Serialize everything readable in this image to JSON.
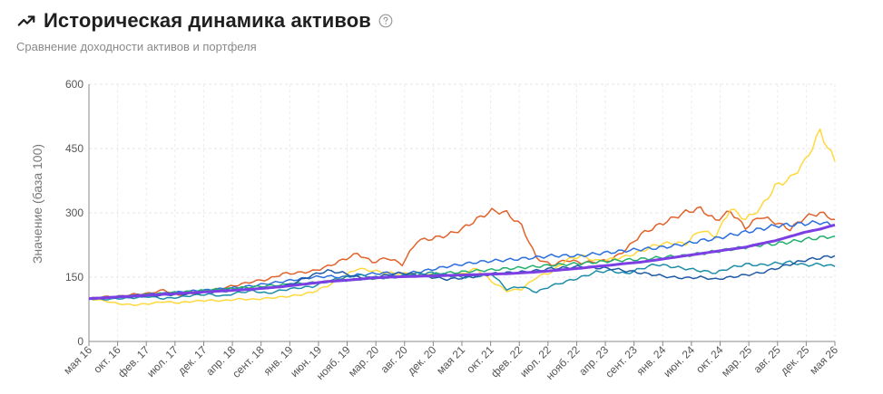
{
  "header": {
    "title": "Историческая динамика активов",
    "subtitle": "Сравнение доходности активов и портфеля"
  },
  "icons": {
    "trend": "trend-up-icon",
    "help": "help-circle-icon"
  },
  "chart_data": {
    "type": "line",
    "ylabel": "Значение (база 100)",
    "xlabel": "",
    "ylim": [
      0,
      600
    ],
    "yticks": [
      0,
      150,
      300,
      450,
      600
    ],
    "x_tick_labels": [
      "мая 16",
      "окт. 16",
      "фев. 17",
      "июл. 17",
      "дек. 17",
      "апр. 18",
      "сент. 18",
      "янв. 19",
      "июн. 19",
      "нояб. 19",
      "мар. 20",
      "авг. 20",
      "дек. 20",
      "мая 21",
      "окт. 21",
      "фев. 22",
      "июл. 22",
      "нояб. 22",
      "апр. 23",
      "сент. 23",
      "янв. 24",
      "июн. 24",
      "окт. 24",
      "мар. 25",
      "авг. 25",
      "дек. 25",
      "мая 26"
    ],
    "grid": true,
    "legend": "none",
    "series": [
      {
        "color": "#e0632c",
        "values": [
          100,
          104,
          105,
          110,
          112,
          120,
          108,
          112,
          118,
          125,
          132,
          140,
          145,
          158,
          160,
          164,
          175,
          190,
          205,
          185,
          195,
          180,
          235,
          240,
          248,
          262,
          285,
          305,
          300,
          270,
          195,
          178,
          190,
          184,
          186,
          190,
          215,
          250,
          268,
          285,
          302,
          310,
          282,
          304,
          265,
          292,
          278,
          262,
          290,
          300,
          285
        ]
      },
      {
        "color": "#ffd93d",
        "values": [
          100,
          95,
          88,
          85,
          88,
          93,
          90,
          94,
          96,
          95,
          99,
          98,
          101,
          104,
          108,
          115,
          130,
          150,
          170,
          165,
          160,
          158,
          160,
          155,
          152,
          158,
          170,
          140,
          118,
          122,
          150,
          162,
          190,
          200,
          188,
          192,
          198,
          210,
          225,
          230,
          228,
          260,
          245,
          310,
          285,
          310,
          362,
          380,
          420,
          490,
          420
        ]
      },
      {
        "color": "#2b6fdc",
        "values": [
          100,
          102,
          104,
          107,
          110,
          112,
          115,
          118,
          120,
          123,
          126,
          130,
          135,
          140,
          145,
          150,
          152,
          150,
          155,
          158,
          160,
          158,
          162,
          168,
          175,
          180,
          185,
          188,
          190,
          193,
          196,
          200,
          200,
          200,
          205,
          208,
          212,
          215,
          218,
          222,
          228,
          235,
          240,
          248,
          255,
          262,
          270,
          272,
          275,
          278,
          270
        ]
      },
      {
        "color": "#23b06e",
        "values": [
          100,
          102,
          105,
          107,
          110,
          112,
          115,
          117,
          120,
          122,
          125,
          127,
          130,
          132,
          135,
          137,
          140,
          142,
          145,
          147,
          150,
          152,
          155,
          157,
          160,
          162,
          165,
          167,
          170,
          172,
          175,
          178,
          180,
          182,
          185,
          188,
          190,
          192,
          195,
          198,
          200,
          205,
          210,
          215,
          220,
          225,
          228,
          232,
          238,
          242,
          246
        ]
      },
      {
        "color": "#1e8ea8",
        "values": [
          100,
          98,
          100,
          102,
          105,
          100,
          103,
          108,
          110,
          106,
          114,
          118,
          112,
          120,
          125,
          128,
          140,
          148,
          155,
          150,
          148,
          152,
          158,
          160,
          155,
          150,
          152,
          158,
          122,
          128,
          115,
          130,
          140,
          150,
          162,
          165,
          158,
          170,
          180,
          175,
          170,
          165,
          160,
          172,
          180,
          178,
          182,
          185,
          178,
          180,
          175
        ]
      },
      {
        "color": "#1f5aa6",
        "values": [
          100,
          101,
          103,
          104,
          106,
          108,
          110,
          112,
          115,
          117,
          120,
          122,
          125,
          128,
          140,
          155,
          165,
          160,
          150,
          148,
          155,
          160,
          155,
          150,
          145,
          148,
          152,
          158,
          160,
          162,
          165,
          170,
          172,
          175,
          172,
          170,
          165,
          160,
          155,
          150,
          148,
          150,
          145,
          150,
          155,
          160,
          170,
          180,
          190,
          195,
          200
        ]
      },
      {
        "color": "#7b3fe4",
        "values": [
          100,
          102,
          104,
          106,
          108,
          110,
          112,
          114,
          116,
          118,
          120,
          122,
          125,
          128,
          132,
          136,
          140,
          142,
          145,
          148,
          150,
          151,
          152,
          153,
          154,
          155,
          156,
          157,
          158,
          160,
          162,
          165,
          168,
          171,
          175,
          178,
          182,
          185,
          190,
          195,
          200,
          205,
          210,
          215,
          220,
          228,
          235,
          245,
          255,
          262,
          272
        ]
      }
    ]
  }
}
